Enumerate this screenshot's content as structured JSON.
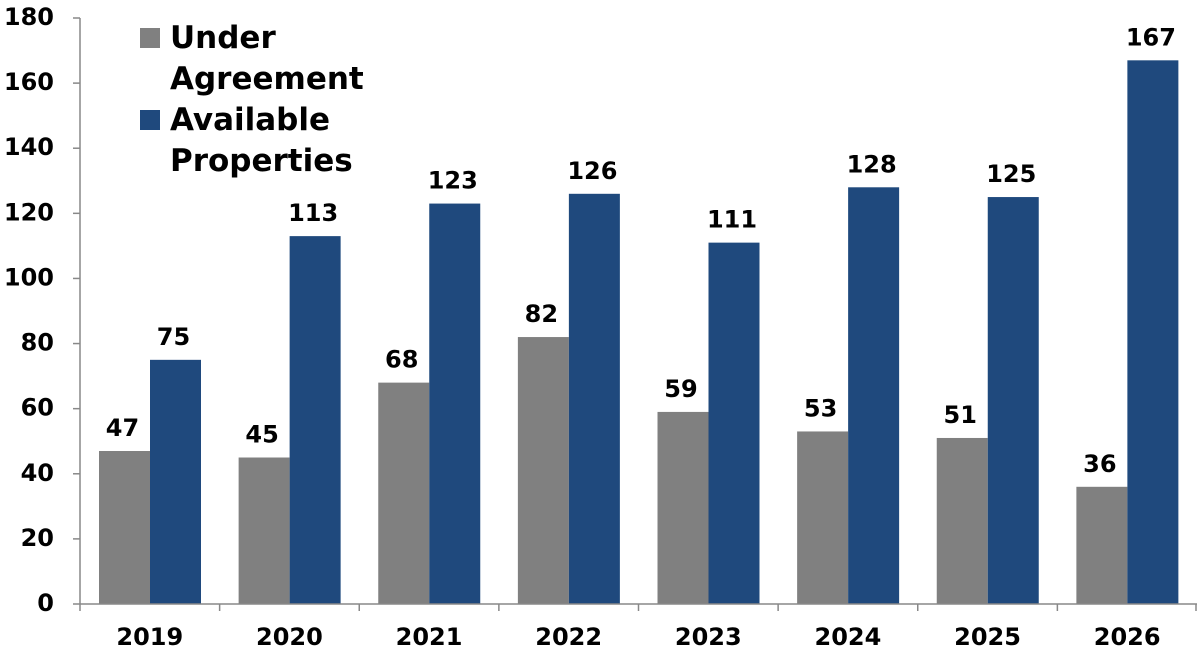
{
  "chart_data": {
    "type": "bar",
    "categories": [
      "2019",
      "2020",
      "2021",
      "2022",
      "2023",
      "2024",
      "2025",
      "2026"
    ],
    "series": [
      {
        "name": "Under Agreement",
        "color": "#808080",
        "values": [
          47,
          45,
          68,
          82,
          59,
          53,
          51,
          36
        ]
      },
      {
        "name": "Available Properties",
        "color": "#1f497d",
        "values": [
          75,
          113,
          123,
          126,
          111,
          128,
          125,
          167
        ]
      }
    ],
    "ylim": [
      0,
      180
    ],
    "yticks": [
      0,
      20,
      40,
      60,
      80,
      100,
      120,
      140,
      160,
      180
    ],
    "legend": "top-left"
  }
}
